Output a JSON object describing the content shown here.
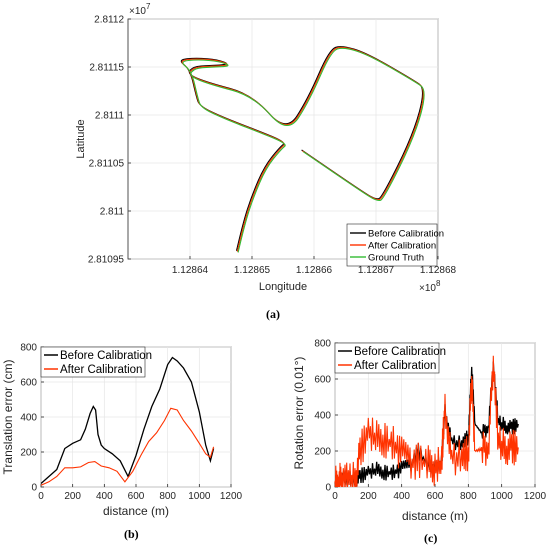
{
  "chart_data": [
    {
      "id": "a",
      "caption": "(a)",
      "type": "line",
      "xlabel": "Longitude",
      "ylabel": "Latitude",
      "x_exponent": "×10",
      "x_exponent_power": "8",
      "y_exponent": "×10",
      "y_exponent_power": "7",
      "xlim": [
        1.12863,
        1.12868
      ],
      "ylim": [
        2.81095,
        2.8112
      ],
      "x_ticks": [
        "1.12864",
        "1.12865",
        "1.12866",
        "1.12867",
        "1.12868"
      ],
      "y_ticks": [
        "2.81095",
        "2.811",
        "2.81105",
        "2.8111",
        "2.81115",
        "2.8112"
      ],
      "grid": true,
      "legend_position": "bottom-right",
      "colors": {
        "before": "#000000",
        "after": "#ff3300",
        "truth": "#33bb33"
      },
      "series": [
        {
          "name": "Before Calibration",
          "offset": [
            0.0,
            -0.15
          ]
        },
        {
          "name": "After Calibration",
          "offset": [
            0.08,
            -0.07
          ]
        },
        {
          "name": "Ground Truth",
          "offset": [
            0.16,
            0.02
          ]
        }
      ],
      "path_truth": [
        [
          1.1286475,
          2.810957
        ],
        [
          1.1286485,
          2.810985
        ],
        [
          1.12865,
          2.811015
        ],
        [
          1.128652,
          2.811045
        ],
        [
          1.1286545,
          2.811065
        ],
        [
          1.1286555,
          2.81107
        ],
        [
          1.128651,
          2.811082
        ],
        [
          1.128645,
          2.811097
        ],
        [
          1.1286415,
          2.811108
        ],
        [
          1.128641,
          2.811118
        ],
        [
          1.12864,
          2.811146
        ],
        [
          1.128638,
          2.811156
        ],
        [
          1.128641,
          2.811158
        ],
        [
          1.1286445,
          2.811156
        ],
        [
          1.1286465,
          2.811151
        ],
        [
          1.128643,
          2.81115
        ],
        [
          1.1286405,
          2.811149
        ],
        [
          1.1286395,
          2.811141
        ],
        [
          1.128643,
          2.811132
        ],
        [
          1.12865,
          2.81112
        ],
        [
          1.1286555,
          2.81108
        ],
        [
          1.128659,
          2.811115
        ],
        [
          1.1286625,
          2.811167
        ],
        [
          1.1286645,
          2.811171
        ],
        [
          1.1286685,
          2.811163
        ],
        [
          1.128676,
          2.811135
        ],
        [
          1.128678,
          2.811126
        ],
        [
          1.128676,
          2.811078
        ],
        [
          1.128671,
          2.811013
        ],
        [
          1.12867,
          2.81101
        ],
        [
          1.1286675,
          2.81102
        ],
        [
          1.128658,
          2.811062
        ]
      ]
    },
    {
      "id": "b",
      "caption": "(b)",
      "type": "line",
      "xlabel": "distance (m)",
      "ylabel": "Translation error (cm)",
      "xlim": [
        0,
        1200
      ],
      "ylim": [
        0,
        800
      ],
      "x_ticks": [
        "0",
        "200",
        "400",
        "600",
        "800",
        "1000",
        "1200"
      ],
      "y_ticks": [
        "0",
        "200",
        "400",
        "600",
        "800"
      ],
      "grid": true,
      "legend_position": "top-left",
      "series": [
        {
          "name": "Before Calibration",
          "color": "#000000",
          "x": [
            0,
            50,
            100,
            150,
            200,
            250,
            280,
            310,
            330,
            345,
            360,
            380,
            400,
            450,
            500,
            550,
            600,
            650,
            700,
            750,
            800,
            830,
            860,
            900,
            950,
            1000,
            1040,
            1070,
            1090
          ],
          "y": [
            20,
            60,
            100,
            220,
            250,
            270,
            330,
            420,
            460,
            440,
            300,
            240,
            220,
            190,
            150,
            60,
            180,
            330,
            460,
            560,
            700,
            740,
            720,
            680,
            600,
            430,
            240,
            150,
            220
          ]
        },
        {
          "name": "After Calibration",
          "color": "#ff3300",
          "x": [
            0,
            50,
            100,
            150,
            200,
            250,
            300,
            340,
            380,
            430,
            480,
            530,
            580,
            630,
            680,
            730,
            780,
            820,
            860,
            900,
            950,
            1000,
            1040,
            1070,
            1090
          ],
          "y": [
            10,
            30,
            60,
            110,
            110,
            115,
            140,
            145,
            120,
            110,
            90,
            30,
            90,
            180,
            260,
            310,
            380,
            450,
            440,
            380,
            320,
            250,
            190,
            170,
            230
          ]
        }
      ]
    },
    {
      "id": "c",
      "caption": "(c)",
      "type": "line",
      "xlabel": "distance (m)",
      "ylabel": "Rotation error (0.01°)",
      "xlim": [
        0,
        1200
      ],
      "ylim": [
        0,
        800
      ],
      "x_ticks": [
        "0",
        "200",
        "400",
        "600",
        "800",
        "1000",
        "1200"
      ],
      "y_ticks": [
        "0",
        "200",
        "400",
        "600",
        "800"
      ],
      "grid": true,
      "legend_position": "top-left",
      "series": [
        {
          "name": "Before Calibration",
          "color": "#000000",
          "x": [
            0,
            20,
            40,
            80,
            120,
            150,
            200,
            250,
            300,
            350,
            400,
            450,
            500,
            560,
            600,
            640,
            660,
            700,
            760,
            800,
            820,
            840,
            880,
            920,
            950,
            980,
            1020,
            1060,
            1100
          ],
          "y": [
            20,
            30,
            60,
            50,
            40,
            60,
            80,
            100,
            80,
            80,
            100,
            110,
            200,
            120,
            110,
            150,
            430,
            250,
            240,
            280,
            660,
            350,
            300,
            330,
            680,
            360,
            340,
            330,
            350
          ]
        },
        {
          "name": "After Calibration",
          "color": "#ff3300",
          "x": [
            0,
            20,
            40,
            80,
            120,
            150,
            200,
            250,
            300,
            350,
            400,
            450,
            500,
            560,
            600,
            640,
            660,
            700,
            760,
            800,
            820,
            840,
            880,
            920,
            950,
            980,
            1020,
            1060,
            1100
          ],
          "y": [
            20,
            30,
            40,
            40,
            40,
            200,
            300,
            280,
            260,
            240,
            180,
            120,
            150,
            140,
            100,
            150,
            450,
            150,
            170,
            190,
            600,
            200,
            210,
            220,
            690,
            250,
            220,
            220,
            220
          ]
        }
      ]
    }
  ]
}
